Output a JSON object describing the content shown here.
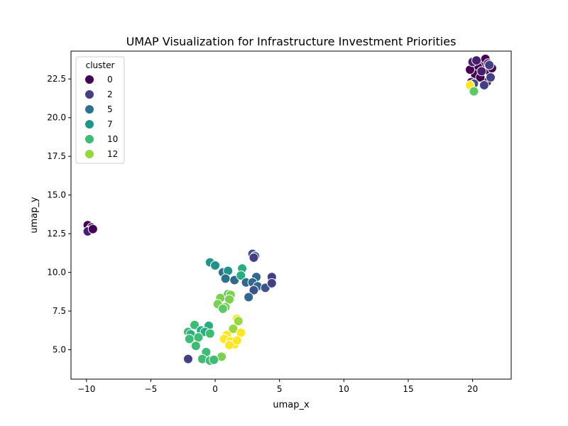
{
  "chart_data": {
    "type": "scatter",
    "title": "UMAP Visualization for Infrastructure Investment Priorities",
    "xlabel": "umap_x",
    "ylabel": "umap_y",
    "xlim": [
      -11.2,
      23.0
    ],
    "ylim": [
      3.1,
      24.3
    ],
    "xticks": [
      -10,
      -5,
      0,
      5,
      10,
      15,
      20
    ],
    "yticks": [
      5.0,
      7.5,
      10.0,
      12.5,
      15.0,
      17.5,
      20.0,
      22.5
    ],
    "grid": false,
    "legend": {
      "title": "cluster",
      "placement": "top-left",
      "entries": [
        {
          "label": "0",
          "color": "#440154"
        },
        {
          "label": "2",
          "color": "#433e85"
        },
        {
          "label": "5",
          "color": "#2c728e"
        },
        {
          "label": "7",
          "color": "#1f968b"
        },
        {
          "label": "10",
          "color": "#3dbc74"
        },
        {
          "label": "12",
          "color": "#95d840"
        }
      ]
    },
    "colors": {
      "c0": "#440154",
      "c1": "#481f70",
      "c2": "#433e85",
      "c3": "#3b528b",
      "c4": "#31688e",
      "c5": "#2c728e",
      "c6": "#21918c",
      "c7": "#1f968b",
      "c8": "#28ae80",
      "c9": "#3dbc74",
      "c10": "#5ec962",
      "c11": "#7ad151",
      "c12": "#95d840",
      "c13": "#fde725"
    },
    "points": [
      {
        "x": 20.8,
        "y": 23.5,
        "c": 0
      },
      {
        "x": 21.0,
        "y": 23.8,
        "c": 0
      },
      {
        "x": 20.4,
        "y": 23.3,
        "c": 0
      },
      {
        "x": 21.3,
        "y": 23.0,
        "c": 0
      },
      {
        "x": 20.2,
        "y": 22.8,
        "c": 0
      },
      {
        "x": 21.1,
        "y": 22.3,
        "c": 0
      },
      {
        "x": 19.8,
        "y": 23.1,
        "c": 0
      },
      {
        "x": 20.6,
        "y": 22.6,
        "c": 0
      },
      {
        "x": 21.5,
        "y": 23.2,
        "c": 0
      },
      {
        "x": 20.0,
        "y": 23.6,
        "c": 1
      },
      {
        "x": 20.7,
        "y": 23.0,
        "c": 1
      },
      {
        "x": 21.2,
        "y": 23.5,
        "c": 1
      },
      {
        "x": 19.9,
        "y": 22.3,
        "c": 1
      },
      {
        "x": 20.3,
        "y": 23.7,
        "c": 1
      },
      {
        "x": 21.4,
        "y": 22.6,
        "c": 2
      },
      {
        "x": 20.9,
        "y": 22.1,
        "c": 2
      },
      {
        "x": 21.3,
        "y": 23.4,
        "c": 2
      },
      {
        "x": 20.1,
        "y": 22.2,
        "c": 3
      },
      {
        "x": 19.8,
        "y": 22.1,
        "c": 13
      },
      {
        "x": 20.1,
        "y": 21.7,
        "c": 10
      },
      {
        "x": -9.9,
        "y": 13.05,
        "c": 0
      },
      {
        "x": -9.6,
        "y": 12.9,
        "c": 0
      },
      {
        "x": -9.8,
        "y": 12.7,
        "c": 0
      },
      {
        "x": -9.9,
        "y": 12.65,
        "c": 1
      },
      {
        "x": -9.5,
        "y": 12.8,
        "c": 0
      },
      {
        "x": 2.9,
        "y": 11.2,
        "c": 3
      },
      {
        "x": 3.1,
        "y": 11.05,
        "c": 3
      },
      {
        "x": 3.0,
        "y": 10.95,
        "c": 2
      },
      {
        "x": -0.4,
        "y": 10.65,
        "c": 7
      },
      {
        "x": 0.0,
        "y": 10.45,
        "c": 6
      },
      {
        "x": 0.6,
        "y": 10.0,
        "c": 5
      },
      {
        "x": 1.0,
        "y": 10.1,
        "c": 6
      },
      {
        "x": 0.8,
        "y": 9.6,
        "c": 5
      },
      {
        "x": 1.5,
        "y": 9.5,
        "c": 4
      },
      {
        "x": 2.1,
        "y": 10.25,
        "c": 8
      },
      {
        "x": 2.0,
        "y": 9.8,
        "c": 8
      },
      {
        "x": 2.4,
        "y": 9.35,
        "c": 4
      },
      {
        "x": 3.2,
        "y": 9.7,
        "c": 4
      },
      {
        "x": 2.9,
        "y": 9.35,
        "c": 4
      },
      {
        "x": 3.3,
        "y": 9.1,
        "c": 4
      },
      {
        "x": 3.0,
        "y": 8.85,
        "c": 3
      },
      {
        "x": 2.6,
        "y": 8.4,
        "c": 4
      },
      {
        "x": 3.9,
        "y": 9.0,
        "c": 3
      },
      {
        "x": 4.4,
        "y": 9.7,
        "c": 2
      },
      {
        "x": 4.4,
        "y": 9.3,
        "c": 2
      },
      {
        "x": 1.0,
        "y": 8.6,
        "c": 10
      },
      {
        "x": 1.2,
        "y": 8.55,
        "c": 11
      },
      {
        "x": 0.4,
        "y": 8.35,
        "c": 11
      },
      {
        "x": 1.1,
        "y": 8.25,
        "c": 11
      },
      {
        "x": 0.2,
        "y": 7.95,
        "c": 11
      },
      {
        "x": 0.8,
        "y": 7.75,
        "c": 11
      },
      {
        "x": 0.6,
        "y": 7.65,
        "c": 10
      },
      {
        "x": 1.7,
        "y": 7.0,
        "c": 13
      },
      {
        "x": 1.8,
        "y": 6.85,
        "c": 12
      },
      {
        "x": 1.4,
        "y": 6.35,
        "c": 12
      },
      {
        "x": 2.0,
        "y": 6.1,
        "c": 13
      },
      {
        "x": 0.9,
        "y": 5.95,
        "c": 13
      },
      {
        "x": 0.7,
        "y": 5.7,
        "c": 13
      },
      {
        "x": 1.2,
        "y": 5.55,
        "c": 13
      },
      {
        "x": 1.5,
        "y": 5.35,
        "c": 13
      },
      {
        "x": 1.1,
        "y": 5.3,
        "c": 13
      },
      {
        "x": 1.7,
        "y": 5.6,
        "c": 13
      },
      {
        "x": 0.5,
        "y": 4.55,
        "c": 11
      },
      {
        "x": -1.6,
        "y": 6.6,
        "c": 9
      },
      {
        "x": -0.5,
        "y": 6.55,
        "c": 8
      },
      {
        "x": -2.1,
        "y": 6.15,
        "c": 9
      },
      {
        "x": -1.1,
        "y": 6.25,
        "c": 8
      },
      {
        "x": -0.8,
        "y": 6.15,
        "c": 8
      },
      {
        "x": -0.4,
        "y": 6.05,
        "c": 9
      },
      {
        "x": -1.9,
        "y": 6.0,
        "c": 8
      },
      {
        "x": -1.3,
        "y": 5.8,
        "c": 9
      },
      {
        "x": -2.0,
        "y": 5.7,
        "c": 9
      },
      {
        "x": -1.5,
        "y": 5.25,
        "c": 9
      },
      {
        "x": -0.7,
        "y": 4.85,
        "c": 9
      },
      {
        "x": -1.0,
        "y": 4.4,
        "c": 9
      },
      {
        "x": -0.4,
        "y": 4.3,
        "c": 9
      },
      {
        "x": -0.1,
        "y": 4.35,
        "c": 9
      },
      {
        "x": -2.1,
        "y": 4.4,
        "c": 2
      }
    ]
  }
}
